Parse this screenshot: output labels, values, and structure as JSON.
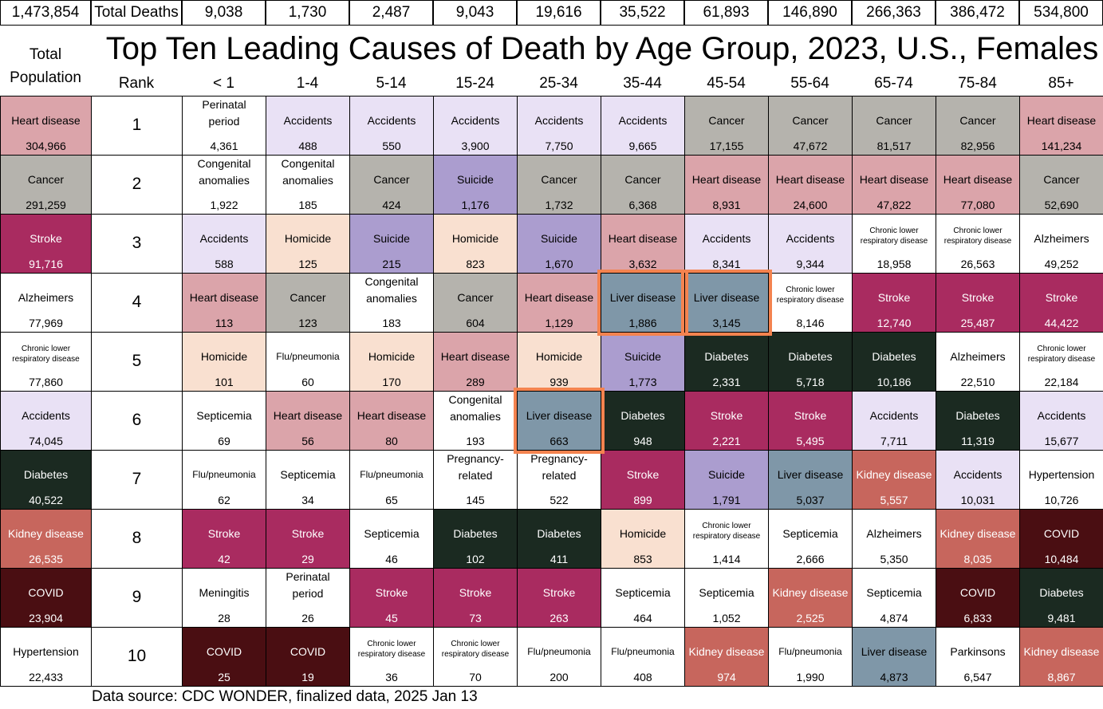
{
  "header": {
    "total_deaths_value": "1,473,854",
    "total_deaths_label": "Total Deaths",
    "title": "Top Ten Leading Causes of Death by Age Group, 2023, U.S., Females",
    "total_population_label": "Total\nPopulation",
    "rank_label": "Rank"
  },
  "footer": {
    "source": "Data source: CDC WONDER, finalized data, 2025 Jan 13"
  },
  "colors": {
    "heart_disease": "#dba4aa",
    "cancer": "#b5b3ad",
    "stroke": "#a92b60",
    "accidents": "#e9e1f5",
    "suicide": "#ab9dcf",
    "homicide": "#f9e0d0",
    "liver_disease": "#7f97a8",
    "diabetes": "#1b2a21",
    "kidney_disease": "#c7665d",
    "covid": "#4a0e12",
    "plain": "#ffffff",
    "highlight_border": "#f4834f"
  },
  "chart_data": {
    "type": "table",
    "title": "Top Ten Leading Causes of Death by Age Group, 2023, U.S., Females",
    "columns": [
      {
        "age_group": "Total Population",
        "total_deaths": "1,473,854"
      },
      {
        "age_group": "< 1",
        "total_deaths": "9,038"
      },
      {
        "age_group": "1-4",
        "total_deaths": "1,730"
      },
      {
        "age_group": "5-14",
        "total_deaths": "2,487"
      },
      {
        "age_group": "15-24",
        "total_deaths": "9,043"
      },
      {
        "age_group": "25-34",
        "total_deaths": "19,616"
      },
      {
        "age_group": "35-44",
        "total_deaths": "35,522"
      },
      {
        "age_group": "45-54",
        "total_deaths": "61,893"
      },
      {
        "age_group": "55-64",
        "total_deaths": "146,890"
      },
      {
        "age_group": "65-74",
        "total_deaths": "266,363"
      },
      {
        "age_group": "75-84",
        "total_deaths": "386,472"
      },
      {
        "age_group": "85+",
        "total_deaths": "534,800"
      }
    ],
    "ranks": [
      "1",
      "2",
      "3",
      "4",
      "5",
      "6",
      "7",
      "8",
      "9",
      "10"
    ],
    "cells": [
      [
        {
          "cause": "Heart disease",
          "value": "304,966",
          "color": "heart_disease"
        },
        {
          "cause": "Perinatal period",
          "value": "4,361",
          "color": "plain"
        },
        {
          "cause": "Accidents",
          "value": "488",
          "color": "accidents"
        },
        {
          "cause": "Accidents",
          "value": "550",
          "color": "accidents"
        },
        {
          "cause": "Accidents",
          "value": "3,900",
          "color": "accidents"
        },
        {
          "cause": "Accidents",
          "value": "7,750",
          "color": "accidents"
        },
        {
          "cause": "Accidents",
          "value": "9,665",
          "color": "accidents"
        },
        {
          "cause": "Cancer",
          "value": "17,155",
          "color": "cancer"
        },
        {
          "cause": "Cancer",
          "value": "47,672",
          "color": "cancer"
        },
        {
          "cause": "Cancer",
          "value": "81,517",
          "color": "cancer"
        },
        {
          "cause": "Cancer",
          "value": "82,956",
          "color": "cancer"
        },
        {
          "cause": "Heart disease",
          "value": "141,234",
          "color": "heart_disease"
        }
      ],
      [
        {
          "cause": "Cancer",
          "value": "291,259",
          "color": "cancer"
        },
        {
          "cause": "Congenital anomalies",
          "value": "1,922",
          "color": "plain"
        },
        {
          "cause": "Congenital anomalies",
          "value": "185",
          "color": "plain"
        },
        {
          "cause": "Cancer",
          "value": "424",
          "color": "cancer"
        },
        {
          "cause": "Suicide",
          "value": "1,176",
          "color": "suicide"
        },
        {
          "cause": "Cancer",
          "value": "1,732",
          "color": "cancer"
        },
        {
          "cause": "Cancer",
          "value": "6,368",
          "color": "cancer"
        },
        {
          "cause": "Heart disease",
          "value": "8,931",
          "color": "heart_disease"
        },
        {
          "cause": "Heart disease",
          "value": "24,600",
          "color": "heart_disease"
        },
        {
          "cause": "Heart disease",
          "value": "47,822",
          "color": "heart_disease"
        },
        {
          "cause": "Heart disease",
          "value": "77,080",
          "color": "heart_disease"
        },
        {
          "cause": "Cancer",
          "value": "52,690",
          "color": "cancer"
        }
      ],
      [
        {
          "cause": "Stroke",
          "value": "91,716",
          "color": "stroke"
        },
        {
          "cause": "Accidents",
          "value": "588",
          "color": "accidents"
        },
        {
          "cause": "Homicide",
          "value": "125",
          "color": "homicide"
        },
        {
          "cause": "Suicide",
          "value": "215",
          "color": "suicide"
        },
        {
          "cause": "Homicide",
          "value": "823",
          "color": "homicide"
        },
        {
          "cause": "Suicide",
          "value": "1,670",
          "color": "suicide"
        },
        {
          "cause": "Heart disease",
          "value": "3,632",
          "color": "heart_disease"
        },
        {
          "cause": "Accidents",
          "value": "8,341",
          "color": "accidents"
        },
        {
          "cause": "Accidents",
          "value": "9,344",
          "color": "accidents"
        },
        {
          "cause": "Chronic lower respiratory disease",
          "value": "18,958",
          "color": "plain"
        },
        {
          "cause": "Chronic lower respiratory disease",
          "value": "26,563",
          "color": "plain"
        },
        {
          "cause": "Alzheimers",
          "value": "49,252",
          "color": "plain"
        }
      ],
      [
        {
          "cause": "Alzheimers",
          "value": "77,969",
          "color": "plain"
        },
        {
          "cause": "Heart disease",
          "value": "113",
          "color": "heart_disease"
        },
        {
          "cause": "Cancer",
          "value": "123",
          "color": "cancer"
        },
        {
          "cause": "Congenital anomalies",
          "value": "183",
          "color": "plain"
        },
        {
          "cause": "Cancer",
          "value": "604",
          "color": "cancer"
        },
        {
          "cause": "Heart disease",
          "value": "1,129",
          "color": "heart_disease"
        },
        {
          "cause": "Liver disease",
          "value": "1,886",
          "color": "liver_disease",
          "highlight": true
        },
        {
          "cause": "Liver disease",
          "value": "3,145",
          "color": "liver_disease",
          "highlight": true
        },
        {
          "cause": "Chronic lower respiratory disease",
          "value": "8,146",
          "color": "plain"
        },
        {
          "cause": "Stroke",
          "value": "12,740",
          "color": "stroke"
        },
        {
          "cause": "Stroke",
          "value": "25,487",
          "color": "stroke"
        },
        {
          "cause": "Stroke",
          "value": "44,422",
          "color": "stroke"
        }
      ],
      [
        {
          "cause": "Chronic lower respiratory disease",
          "value": "77,860",
          "color": "plain"
        },
        {
          "cause": "Homicide",
          "value": "101",
          "color": "homicide"
        },
        {
          "cause": "Flu/pneumonia",
          "value": "60",
          "color": "plain"
        },
        {
          "cause": "Homicide",
          "value": "170",
          "color": "homicide"
        },
        {
          "cause": "Heart disease",
          "value": "289",
          "color": "heart_disease"
        },
        {
          "cause": "Homicide",
          "value": "939",
          "color": "homicide"
        },
        {
          "cause": "Suicide",
          "value": "1,773",
          "color": "suicide"
        },
        {
          "cause": "Diabetes",
          "value": "2,331",
          "color": "diabetes"
        },
        {
          "cause": "Diabetes",
          "value": "5,718",
          "color": "diabetes"
        },
        {
          "cause": "Diabetes",
          "value": "10,186",
          "color": "diabetes"
        },
        {
          "cause": "Alzheimers",
          "value": "22,510",
          "color": "plain"
        },
        {
          "cause": "Chronic lower respiratory disease",
          "value": "22,184",
          "color": "plain"
        }
      ],
      [
        {
          "cause": "Accidents",
          "value": "74,045",
          "color": "accidents"
        },
        {
          "cause": "Septicemia",
          "value": "69",
          "color": "plain"
        },
        {
          "cause": "Heart disease",
          "value": "56",
          "color": "heart_disease"
        },
        {
          "cause": "Heart disease",
          "value": "80",
          "color": "heart_disease"
        },
        {
          "cause": "Congenital anomalies",
          "value": "193",
          "color": "plain"
        },
        {
          "cause": "Liver disease",
          "value": "663",
          "color": "liver_disease",
          "highlight": true
        },
        {
          "cause": "Diabetes",
          "value": "948",
          "color": "diabetes"
        },
        {
          "cause": "Stroke",
          "value": "2,221",
          "color": "stroke"
        },
        {
          "cause": "Stroke",
          "value": "5,495",
          "color": "stroke"
        },
        {
          "cause": "Accidents",
          "value": "7,711",
          "color": "accidents"
        },
        {
          "cause": "Diabetes",
          "value": "11,319",
          "color": "diabetes"
        },
        {
          "cause": "Accidents",
          "value": "15,677",
          "color": "accidents"
        }
      ],
      [
        {
          "cause": "Diabetes",
          "value": "40,522",
          "color": "diabetes"
        },
        {
          "cause": "Flu/pneumonia",
          "value": "62",
          "color": "plain"
        },
        {
          "cause": "Septicemia",
          "value": "34",
          "color": "plain"
        },
        {
          "cause": "Flu/pneumonia",
          "value": "65",
          "color": "plain"
        },
        {
          "cause": "Pregnancy-related",
          "value": "145",
          "color": "plain"
        },
        {
          "cause": "Pregnancy-related",
          "value": "522",
          "color": "plain"
        },
        {
          "cause": "Stroke",
          "value": "899",
          "color": "stroke"
        },
        {
          "cause": "Suicide",
          "value": "1,791",
          "color": "suicide"
        },
        {
          "cause": "Liver disease",
          "value": "5,037",
          "color": "liver_disease"
        },
        {
          "cause": "Kidney disease",
          "value": "5,557",
          "color": "kidney_disease"
        },
        {
          "cause": "Accidents",
          "value": "10,031",
          "color": "accidents"
        },
        {
          "cause": "Hypertension",
          "value": "10,726",
          "color": "plain"
        }
      ],
      [
        {
          "cause": "Kidney disease",
          "value": "26,535",
          "color": "kidney_disease"
        },
        {
          "cause": "Stroke",
          "value": "42",
          "color": "stroke"
        },
        {
          "cause": "Stroke",
          "value": "29",
          "color": "stroke"
        },
        {
          "cause": "Septicemia",
          "value": "46",
          "color": "plain"
        },
        {
          "cause": "Diabetes",
          "value": "102",
          "color": "diabetes"
        },
        {
          "cause": "Diabetes",
          "value": "411",
          "color": "diabetes"
        },
        {
          "cause": "Homicide",
          "value": "853",
          "color": "homicide"
        },
        {
          "cause": "Chronic lower respiratory disease",
          "value": "1,414",
          "color": "plain"
        },
        {
          "cause": "Septicemia",
          "value": "2,666",
          "color": "plain"
        },
        {
          "cause": "Alzheimers",
          "value": "5,350",
          "color": "plain"
        },
        {
          "cause": "Kidney disease",
          "value": "8,035",
          "color": "kidney_disease"
        },
        {
          "cause": "COVID",
          "value": "10,484",
          "color": "covid"
        }
      ],
      [
        {
          "cause": "COVID",
          "value": "23,904",
          "color": "covid"
        },
        {
          "cause": "Meningitis",
          "value": "28",
          "color": "plain"
        },
        {
          "cause": "Perinatal period",
          "value": "26",
          "color": "plain"
        },
        {
          "cause": "Stroke",
          "value": "45",
          "color": "stroke"
        },
        {
          "cause": "Stroke",
          "value": "73",
          "color": "stroke"
        },
        {
          "cause": "Stroke",
          "value": "263",
          "color": "stroke"
        },
        {
          "cause": "Septicemia",
          "value": "464",
          "color": "plain"
        },
        {
          "cause": "Septicemia",
          "value": "1,052",
          "color": "plain"
        },
        {
          "cause": "Kidney disease",
          "value": "2,525",
          "color": "kidney_disease"
        },
        {
          "cause": "Septicemia",
          "value": "4,874",
          "color": "plain"
        },
        {
          "cause": "COVID",
          "value": "6,833",
          "color": "covid"
        },
        {
          "cause": "Diabetes",
          "value": "9,481",
          "color": "diabetes"
        }
      ],
      [
        {
          "cause": "Hypertension",
          "value": "22,433",
          "color": "plain"
        },
        {
          "cause": "COVID",
          "value": "25",
          "color": "covid"
        },
        {
          "cause": "COVID",
          "value": "19",
          "color": "covid"
        },
        {
          "cause": "Chronic lower respiratory disease",
          "value": "36",
          "color": "plain"
        },
        {
          "cause": "Chronic lower respiratory disease",
          "value": "70",
          "color": "plain"
        },
        {
          "cause": "Flu/pneumonia",
          "value": "200",
          "color": "plain"
        },
        {
          "cause": "Flu/pneumonia",
          "value": "408",
          "color": "plain"
        },
        {
          "cause": "Kidney disease",
          "value": "974",
          "color": "kidney_disease"
        },
        {
          "cause": "Flu/pneumonia",
          "value": "1,990",
          "color": "plain"
        },
        {
          "cause": "Liver disease",
          "value": "4,873",
          "color": "liver_disease"
        },
        {
          "cause": "Parkinsons",
          "value": "6,547",
          "color": "plain"
        },
        {
          "cause": "Kidney disease",
          "value": "8,867",
          "color": "kidney_disease"
        }
      ]
    ]
  }
}
